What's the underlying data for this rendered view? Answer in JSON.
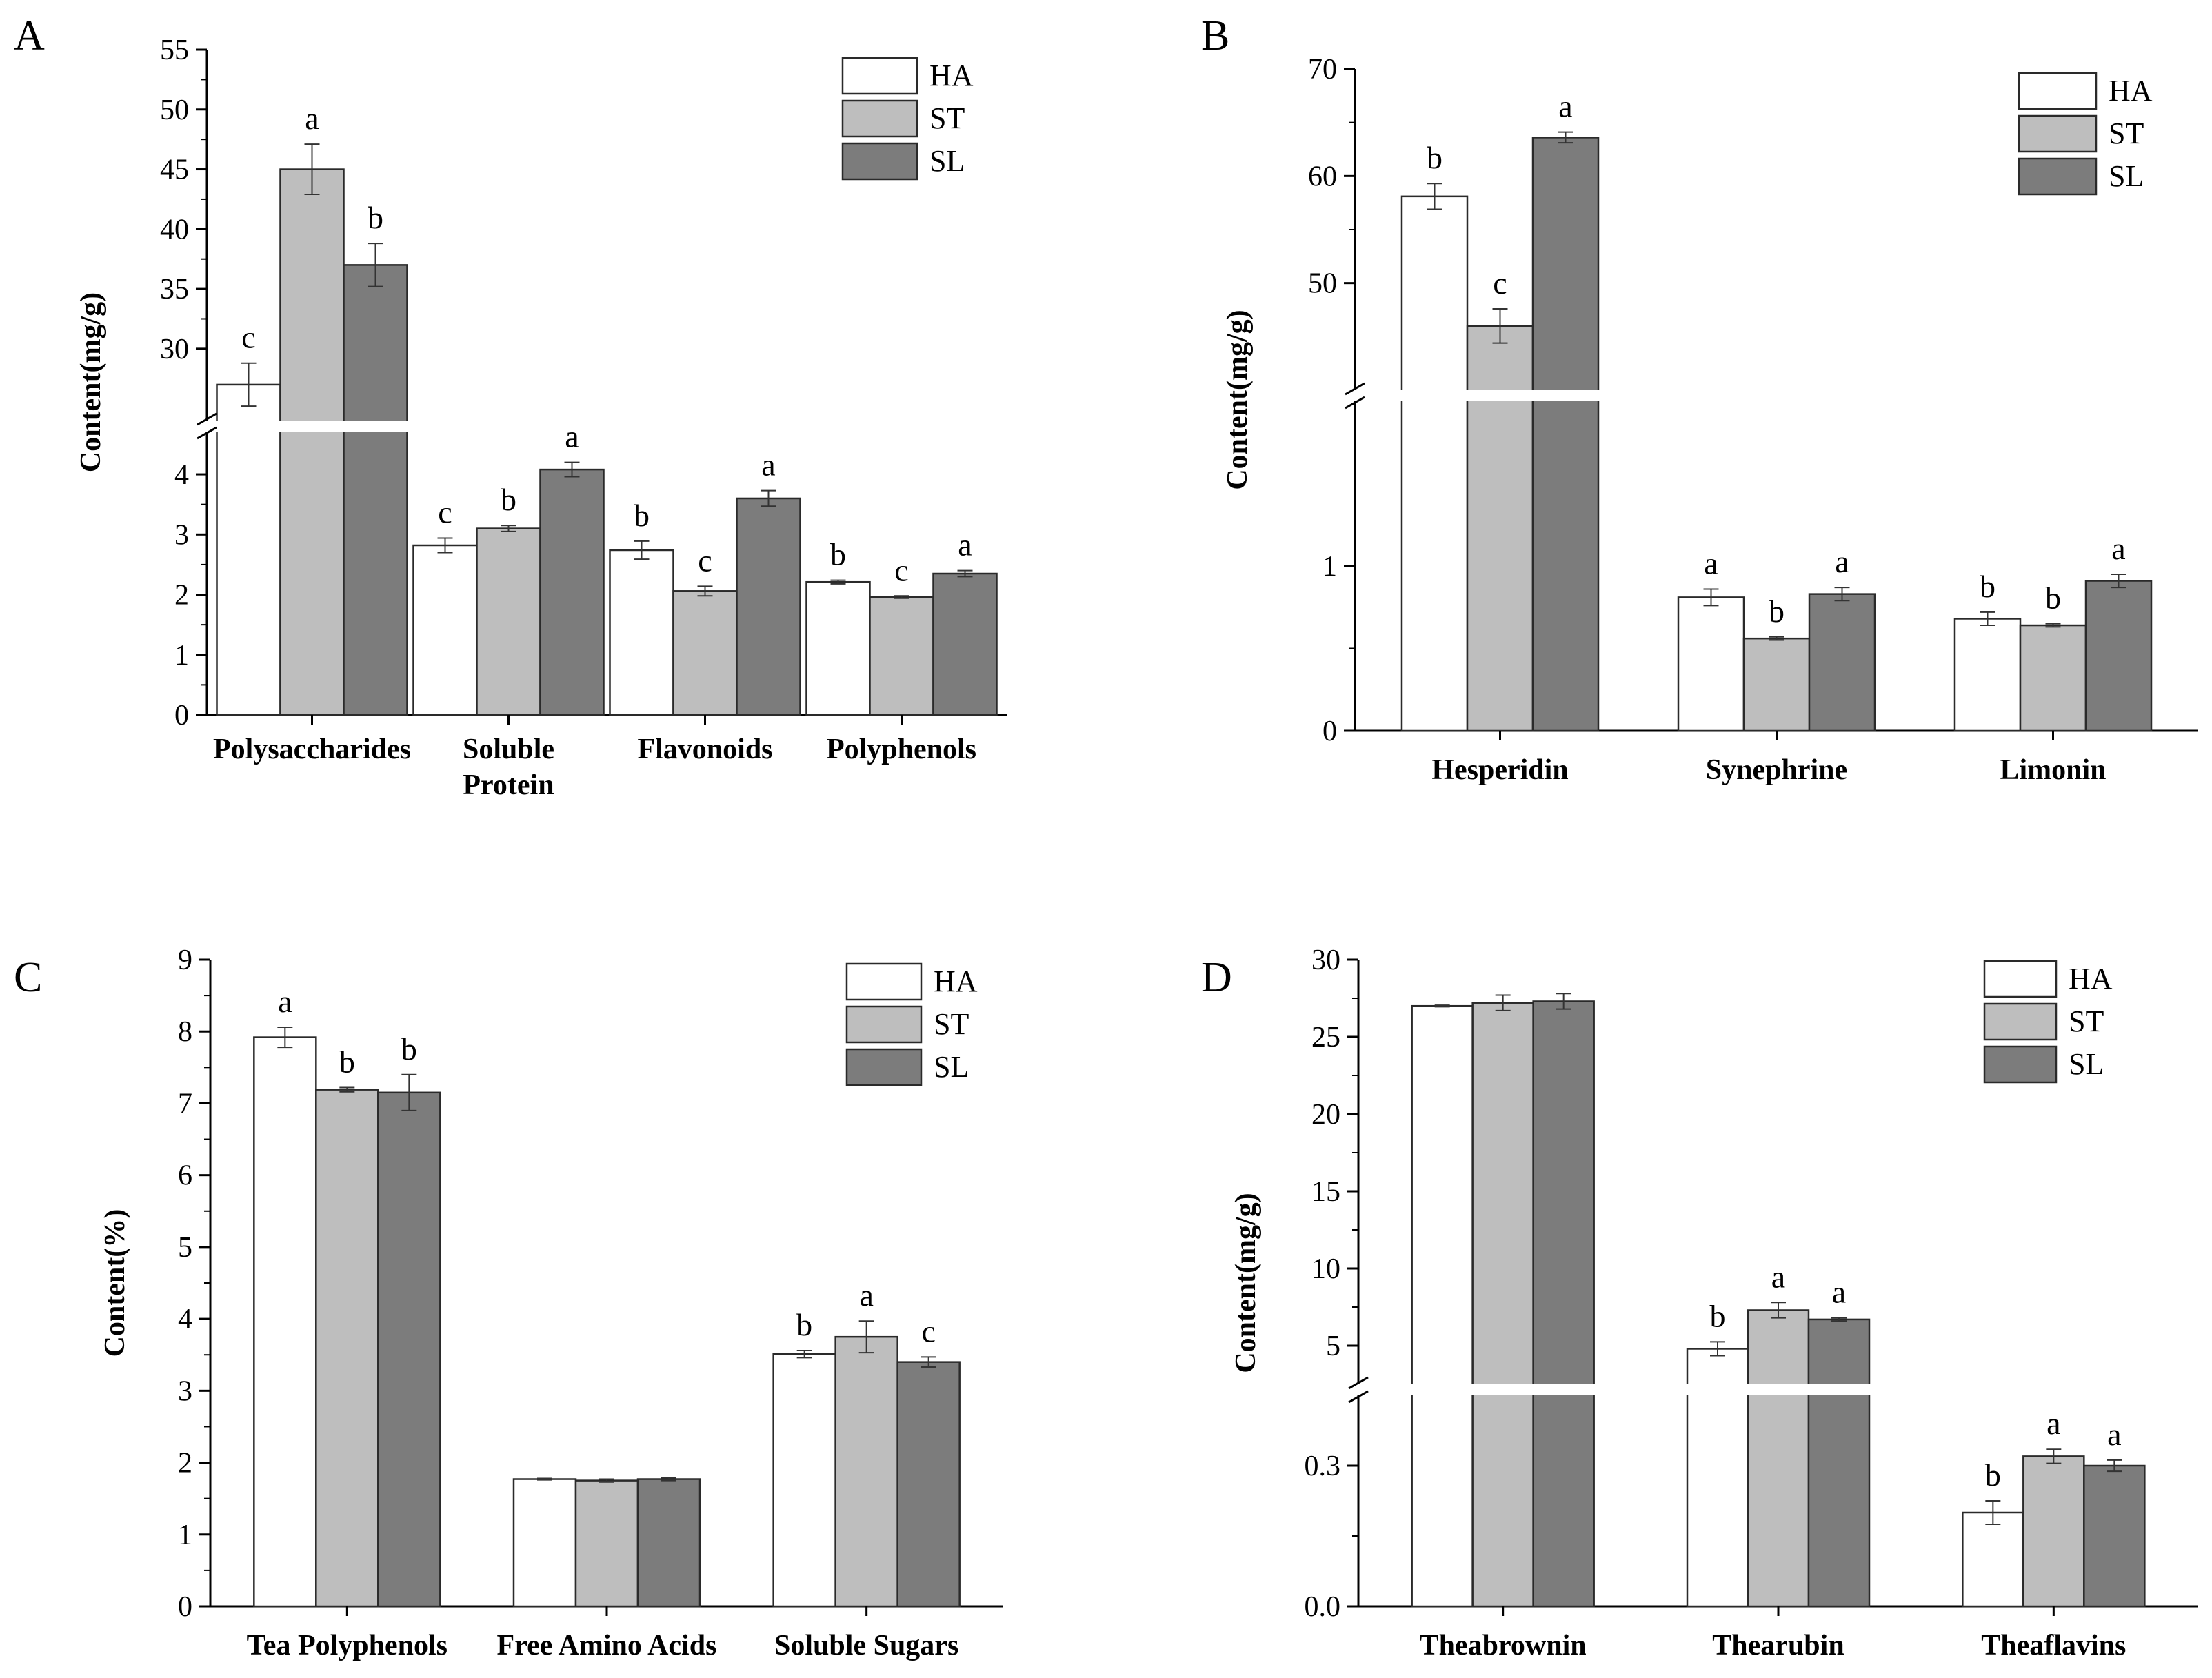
{
  "colors": {
    "HA": "#ffffff",
    "ST": "#bebebe",
    "SL": "#7c7c7c",
    "stroke": "#2a2a2a"
  },
  "chart_data": [
    {
      "panel": "A",
      "type": "bar",
      "ylabel": "Content(mg/g)",
      "categories": [
        [
          "Polysaccharides"
        ],
        [
          "Soluble",
          "Protein"
        ],
        [
          "Flavonoids"
        ],
        [
          "Polyphenols"
        ]
      ],
      "series": [
        {
          "name": "HA",
          "values": [
            27.0,
            2.82,
            2.74,
            2.21
          ],
          "errors": [
            1.8,
            0.12,
            0.15,
            0.03
          ],
          "letters": [
            "c",
            "c",
            "b",
            "b"
          ]
        },
        {
          "name": "ST",
          "values": [
            45.0,
            3.1,
            2.06,
            1.96
          ],
          "errors": [
            2.1,
            0.05,
            0.08,
            0.02
          ],
          "letters": [
            "a",
            "b",
            "c",
            "c"
          ]
        },
        {
          "name": "SL",
          "values": [
            37.0,
            4.08,
            3.6,
            2.35
          ],
          "errors": [
            1.8,
            0.12,
            0.13,
            0.05
          ],
          "letters": [
            "b",
            "a",
            "a",
            "a"
          ]
        }
      ],
      "y_segments": [
        {
          "range": [
            0,
            4.7
          ],
          "ticks": [
            "0",
            "1",
            "2",
            "3",
            "4"
          ]
        },
        {
          "range": [
            24,
            55
          ],
          "ticks": [
            "30",
            "35",
            "40",
            "45",
            "50",
            "55"
          ]
        }
      ],
      "legend": [
        "HA",
        "ST",
        "SL"
      ],
      "legend_position": "top-right"
    },
    {
      "panel": "B",
      "type": "bar",
      "ylabel": "Content(mg/g)",
      "categories": [
        [
          "Hesperidin"
        ],
        [
          "Synephrine"
        ],
        [
          "Limonin"
        ]
      ],
      "series": [
        {
          "name": "HA",
          "values": [
            58.1,
            0.81,
            0.68
          ],
          "errors": [
            1.2,
            0.05,
            0.04
          ],
          "letters": [
            "b",
            "a",
            "b"
          ]
        },
        {
          "name": "ST",
          "values": [
            46.0,
            0.56,
            0.64
          ],
          "errors": [
            1.6,
            0.01,
            0.01
          ],
          "letters": [
            "c",
            "b",
            "b"
          ]
        },
        {
          "name": "SL",
          "values": [
            63.6,
            0.83,
            0.91
          ],
          "errors": [
            0.5,
            0.04,
            0.04
          ],
          "letters": [
            "a",
            "a",
            "a"
          ]
        }
      ],
      "y_segments": [
        {
          "range": [
            0,
            2.0
          ],
          "ticks": [
            "0",
            "1"
          ]
        },
        {
          "range": [
            40,
            70
          ],
          "ticks": [
            "50",
            "60",
            "70"
          ]
        }
      ],
      "legend": [
        "HA",
        "ST",
        "SL"
      ],
      "legend_position": "top-right"
    },
    {
      "panel": "C",
      "type": "bar",
      "ylabel": "Content(%)",
      "categories": [
        [
          "Tea Polyphenols"
        ],
        [
          "Free Amino Acids"
        ],
        [
          "Soluble Sugars"
        ]
      ],
      "series": [
        {
          "name": "HA",
          "values": [
            7.92,
            1.77,
            3.51
          ],
          "errors": [
            0.14,
            0.01,
            0.05
          ],
          "letters": [
            "a",
            "",
            "b"
          ]
        },
        {
          "name": "ST",
          "values": [
            7.19,
            1.75,
            3.75
          ],
          "errors": [
            0.03,
            0.02,
            0.22
          ],
          "letters": [
            "b",
            "",
            "a"
          ]
        },
        {
          "name": "SL",
          "values": [
            7.15,
            1.77,
            3.4
          ],
          "errors": [
            0.25,
            0.02,
            0.07
          ],
          "letters": [
            "b",
            "",
            "c"
          ]
        }
      ],
      "y_segments": [
        {
          "range": [
            0,
            9
          ],
          "ticks": [
            "0",
            "1",
            "2",
            "3",
            "4",
            "5",
            "6",
            "7",
            "8",
            "9"
          ]
        }
      ],
      "legend": [
        "HA",
        "ST",
        "SL"
      ],
      "legend_position": "top-right"
    },
    {
      "panel": "D",
      "type": "bar",
      "ylabel": "Content(mg/g)",
      "categories": [
        [
          "Theabrownin"
        ],
        [
          "Thearubin"
        ],
        [
          "Theaflavins"
        ]
      ],
      "series": [
        {
          "name": "HA",
          "values": [
            27.0,
            4.8,
            0.2
          ],
          "errors": [
            0.05,
            0.45,
            0.025
          ],
          "letters": [
            "",
            "b",
            "b"
          ]
        },
        {
          "name": "ST",
          "values": [
            27.2,
            7.3,
            0.32
          ],
          "errors": [
            0.5,
            0.5,
            0.015
          ],
          "letters": [
            "",
            "a",
            "a"
          ]
        },
        {
          "name": "SL",
          "values": [
            27.3,
            6.7,
            0.3
          ],
          "errors": [
            0.5,
            0.1,
            0.012
          ],
          "letters": [
            "",
            "a",
            "a"
          ]
        }
      ],
      "y_segments": [
        {
          "range": [
            0,
            0.45
          ],
          "ticks": [
            "0.0",
            "0.3"
          ]
        },
        {
          "range": [
            2.5,
            30
          ],
          "ticks": [
            "5",
            "10",
            "15",
            "20",
            "25",
            "30"
          ]
        }
      ],
      "legend": [
        "HA",
        "ST",
        "SL"
      ],
      "legend_position": "top-right"
    }
  ]
}
